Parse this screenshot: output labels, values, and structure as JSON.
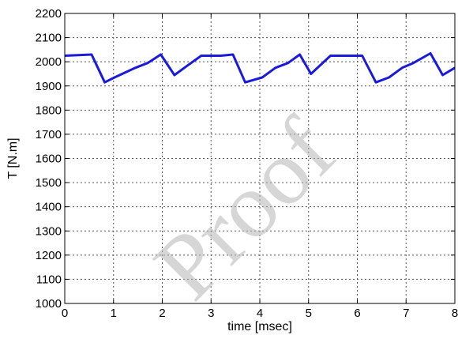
{
  "chart_data": {
    "type": "line",
    "title": "",
    "xlabel": "time [msec]",
    "ylabel": "T [N.m]",
    "xlim": [
      0,
      8
    ],
    "ylim": [
      1000,
      2200
    ],
    "x_ticks": [
      "0",
      "1",
      "2",
      "3",
      "4",
      "5",
      "6",
      "7",
      "8"
    ],
    "y_ticks": [
      "1000",
      "1100",
      "1200",
      "1300",
      "1400",
      "1500",
      "1600",
      "1700",
      "1800",
      "1900",
      "2000",
      "2100",
      "2200"
    ],
    "grid": true,
    "grid_style": "dotted",
    "series": [
      {
        "color": "#1a1adc",
        "x": [
          0,
          0.55,
          0.82,
          1.02,
          1.45,
          1.7,
          1.97,
          2.25,
          2.52,
          2.8,
          3.2,
          3.45,
          3.7,
          4.05,
          4.32,
          4.58,
          4.82,
          5.05,
          5.45,
          5.75,
          6.1,
          6.38,
          6.65,
          6.92,
          7.15,
          7.5,
          7.75,
          8.0
        ],
        "y": [
          2025,
          2030,
          1915,
          1935,
          1975,
          1995,
          2030,
          1945,
          1985,
          2025,
          2025,
          2030,
          1915,
          1935,
          1975,
          1995,
          2030,
          1950,
          2025,
          2025,
          2025,
          1915,
          1935,
          1975,
          1995,
          2035,
          1945,
          1975
        ]
      }
    ]
  },
  "watermark_text": "Proof"
}
